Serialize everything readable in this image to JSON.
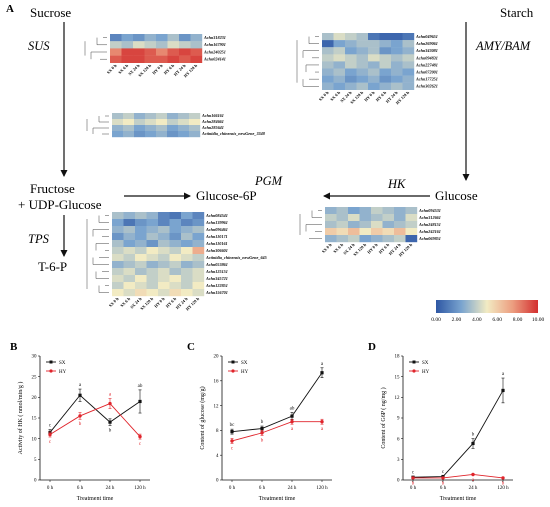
{
  "panel_a": {
    "label": "A",
    "metabolites": {
      "sucrose": "Sucrose",
      "starch": "Starch",
      "fructose": "Fructose",
      "udp_glucose": "+ UDP-Glucose",
      "glucose6p": "Glucose-6P",
      "glucose": "Glucose",
      "t6p": "T-6-P"
    },
    "enzymes": {
      "sus": "SUS",
      "amy": "AMY/BAM",
      "pgm": "PGM",
      "hk": "HK",
      "tps": "TPS"
    },
    "sample_labels": [
      "SX 0 h",
      "SX 6 h",
      "SX 24 h",
      "SX 120 h",
      "HY 0 h",
      "HY 6 h",
      "HY 24 h",
      "HY 120 h"
    ],
    "color_scale": {
      "colors": [
        "#2e57a4",
        "#7aa4cf",
        "#f2ebc3",
        "#ec9e80",
        "#d32f2f"
      ],
      "ticks": [
        "0.00",
        "2.00",
        "4.00",
        "6.00",
        "8.00",
        "10.00"
      ]
    },
    "heatmaps": {
      "sus": {
        "genes": [
          "Achn318231",
          "Achn167901",
          "Achn240251",
          "Achn024141"
        ],
        "values": [
          [
            1.5,
            2.5,
            2.0,
            3.0,
            2.5,
            3.5,
            2.0,
            3.0
          ],
          [
            4.0,
            3.5,
            4.5,
            4.0,
            3.5,
            4.5,
            4.0,
            3.5
          ],
          [
            8.0,
            9.5,
            9.5,
            9.0,
            8.0,
            9.0,
            9.5,
            9.0
          ],
          [
            9.0,
            9.5,
            9.5,
            9.0,
            9.0,
            9.5,
            9.0,
            9.5
          ]
        ]
      },
      "amy": {
        "genes": [
          "Achn049651",
          "Achn269061",
          "Achn343081",
          "Achn094831",
          "Achn227481",
          "Achn072001",
          "Achn177251",
          "Achn302621"
        ],
        "values": [
          [
            3.5,
            4.5,
            4.0,
            3.5,
            1.0,
            0.5,
            0.5,
            1.0
          ],
          [
            0.5,
            2.5,
            3.0,
            3.5,
            3.5,
            3.0,
            2.5,
            3.5
          ],
          [
            3.5,
            4.0,
            2.5,
            3.0,
            3.5,
            2.0,
            2.5,
            3.0
          ],
          [
            4.0,
            4.5,
            4.0,
            3.5,
            4.5,
            4.0,
            3.5,
            4.0
          ],
          [
            3.5,
            3.0,
            4.0,
            3.5,
            3.0,
            4.0,
            3.0,
            3.5
          ],
          [
            3.0,
            3.5,
            2.5,
            3.0,
            3.5,
            2.5,
            3.0,
            2.5
          ],
          [
            2.5,
            3.0,
            2.0,
            2.5,
            3.0,
            2.0,
            2.5,
            3.0
          ],
          [
            3.0,
            2.5,
            3.0,
            3.5,
            2.5,
            3.0,
            3.5,
            3.0
          ]
        ]
      },
      "pgm": {
        "genes": [
          "Achn166161",
          "Achn284661",
          "Achn285641",
          "Actinidia_chinensis_newGene_3348"
        ],
        "values": [
          [
            3.5,
            4.0,
            3.0,
            3.5,
            4.0,
            3.0,
            3.5,
            4.0
          ],
          [
            4.5,
            5.0,
            4.0,
            4.5,
            5.0,
            4.0,
            4.5,
            5.0
          ],
          [
            3.0,
            3.5,
            2.5,
            3.0,
            3.5,
            2.5,
            3.0,
            3.5
          ],
          [
            2.5,
            3.0,
            2.0,
            2.5,
            3.0,
            2.0,
            2.5,
            3.0
          ]
        ]
      },
      "hk": {
        "genes": [
          "Achn094531",
          "Achn312661",
          "Achn248151",
          "Achn242161",
          "Achn069851"
        ],
        "values": [
          [
            3.0,
            3.5,
            2.5,
            3.0,
            4.0,
            3.5,
            3.0,
            3.5
          ],
          [
            4.0,
            3.5,
            4.5,
            3.0,
            3.5,
            4.0,
            3.0,
            4.5
          ],
          [
            3.5,
            4.0,
            3.0,
            3.5,
            4.5,
            3.0,
            3.5,
            4.0
          ],
          [
            6.0,
            5.5,
            6.5,
            5.0,
            6.0,
            5.5,
            6.5,
            5.0
          ],
          [
            3.0,
            3.5,
            4.0,
            2.5,
            3.0,
            3.5,
            4.0,
            0.5
          ]
        ]
      },
      "tps": {
        "genes": [
          "Achn084541",
          "Achn139961",
          "Achn096461",
          "Achn110171",
          "Achn110161",
          "Achn306601",
          "Actinidia_chinensis_newGene_645",
          "Achn053861",
          "Achn125151",
          "Achn345721",
          "Achn122851",
          "Achn156701"
        ],
        "values": [
          [
            3.5,
            3.0,
            3.5,
            3.0,
            1.5,
            1.0,
            2.5,
            1.5
          ],
          [
            2.5,
            1.0,
            2.0,
            2.5,
            1.5,
            2.5,
            1.5,
            2.0
          ],
          [
            3.0,
            3.5,
            2.5,
            3.0,
            3.5,
            2.5,
            3.0,
            3.5
          ],
          [
            2.0,
            3.0,
            2.5,
            3.5,
            3.0,
            2.0,
            3.5,
            2.5
          ],
          [
            3.5,
            2.5,
            3.0,
            2.0,
            3.5,
            3.0,
            2.5,
            3.0
          ],
          [
            4.0,
            4.5,
            4.0,
            5.0,
            4.5,
            4.0,
            5.0,
            7.0
          ],
          [
            4.5,
            4.0,
            5.0,
            4.5,
            4.0,
            5.0,
            4.5,
            4.0
          ],
          [
            3.0,
            3.5,
            4.0,
            3.0,
            3.5,
            4.0,
            3.0,
            3.5
          ],
          [
            4.0,
            4.5,
            3.5,
            4.0,
            4.5,
            3.5,
            4.0,
            4.5
          ],
          [
            4.5,
            4.0,
            5.0,
            4.0,
            4.5,
            5.0,
            4.0,
            4.5
          ],
          [
            4.0,
            5.0,
            4.5,
            4.0,
            5.0,
            4.5,
            4.0,
            5.0
          ],
          [
            5.0,
            4.5,
            5.5,
            5.0,
            4.5,
            5.5,
            5.0,
            4.5
          ]
        ]
      }
    }
  },
  "chart_data": [
    {
      "panel": "B",
      "type": "line",
      "categories": [
        "0 h",
        "6 h",
        "24 h",
        "120 h"
      ],
      "xlabel": "Treatment time",
      "ylabel": "Activity of HK ( nmol/min/g )",
      "ylim": [
        0,
        30
      ],
      "yticks": [
        "0",
        "5",
        "10",
        "15",
        "20",
        "25",
        "30"
      ],
      "series": [
        {
          "name": "SX",
          "color": "#111111",
          "values": [
            11.5,
            20.5,
            14.0,
            19.0
          ],
          "errors": [
            0.7,
            1.5,
            0.8,
            2.8
          ],
          "sig": [
            "c",
            "a",
            "b",
            "ab"
          ]
        },
        {
          "name": "HY",
          "color": "#e0242b",
          "values": [
            11.0,
            15.5,
            18.5,
            10.5
          ],
          "errors": [
            0.6,
            0.8,
            1.2,
            0.6
          ],
          "sig": [
            "c",
            "b",
            "a",
            "c"
          ]
        }
      ]
    },
    {
      "panel": "C",
      "type": "line",
      "categories": [
        "0 h",
        "6 h",
        "24 h",
        "120 h"
      ],
      "xlabel": "Treatment time",
      "ylabel": "Content of glucose (mg/g)",
      "ylim": [
        0,
        20
      ],
      "yticks": [
        "0",
        "4",
        "8",
        "12",
        "16",
        "20"
      ],
      "series": [
        {
          "name": "SX",
          "color": "#111111",
          "values": [
            7.8,
            8.3,
            10.3,
            17.3
          ],
          "errors": [
            0.4,
            0.4,
            0.6,
            0.8
          ],
          "sig": [
            "bc",
            "b",
            "ab",
            "a"
          ]
        },
        {
          "name": "HY",
          "color": "#e0242b",
          "values": [
            6.3,
            7.6,
            9.4,
            9.4
          ],
          "errors": [
            0.4,
            0.4,
            0.4,
            0.4
          ],
          "sig": [
            "c",
            "b",
            "a",
            "a"
          ]
        }
      ]
    },
    {
      "panel": "D",
      "type": "line",
      "categories": [
        "0 h",
        "6 h",
        "24 h",
        "120 h"
      ],
      "xlabel": "Treatment time",
      "ylabel": "Content of G6P ( ng/mg )",
      "ylim": [
        0,
        18
      ],
      "yticks": [
        "0",
        "3",
        "6",
        "9",
        "12",
        "15",
        "18"
      ],
      "series": [
        {
          "name": "SX",
          "color": "#111111",
          "values": [
            0.4,
            0.5,
            5.3,
            13.0
          ],
          "errors": [
            0.1,
            0.1,
            0.7,
            1.8
          ],
          "sig": [
            "c",
            "c",
            "b",
            "a"
          ]
        },
        {
          "name": "HY",
          "color": "#e0242b",
          "values": [
            0.3,
            0.3,
            0.8,
            0.3
          ],
          "errors": [
            0.05,
            0.05,
            0.1,
            0.05
          ],
          "sig": [
            "b",
            "b",
            "a",
            "b"
          ]
        }
      ]
    }
  ]
}
